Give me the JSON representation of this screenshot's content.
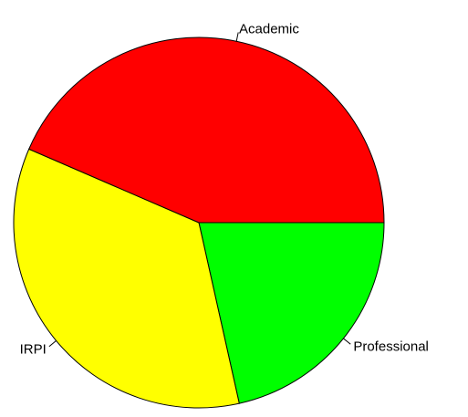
{
  "chart_data": {
    "type": "pie",
    "slices": [
      {
        "label": "Professional",
        "value": 21.5,
        "color": "#00ff00"
      },
      {
        "label": "IRPI",
        "value": 35.0,
        "color": "#ffff00"
      },
      {
        "label": "Academic",
        "value": 43.5,
        "color": "#ff0000"
      }
    ],
    "start_angle_deg": 0,
    "direction": "clockwise",
    "title": ""
  }
}
